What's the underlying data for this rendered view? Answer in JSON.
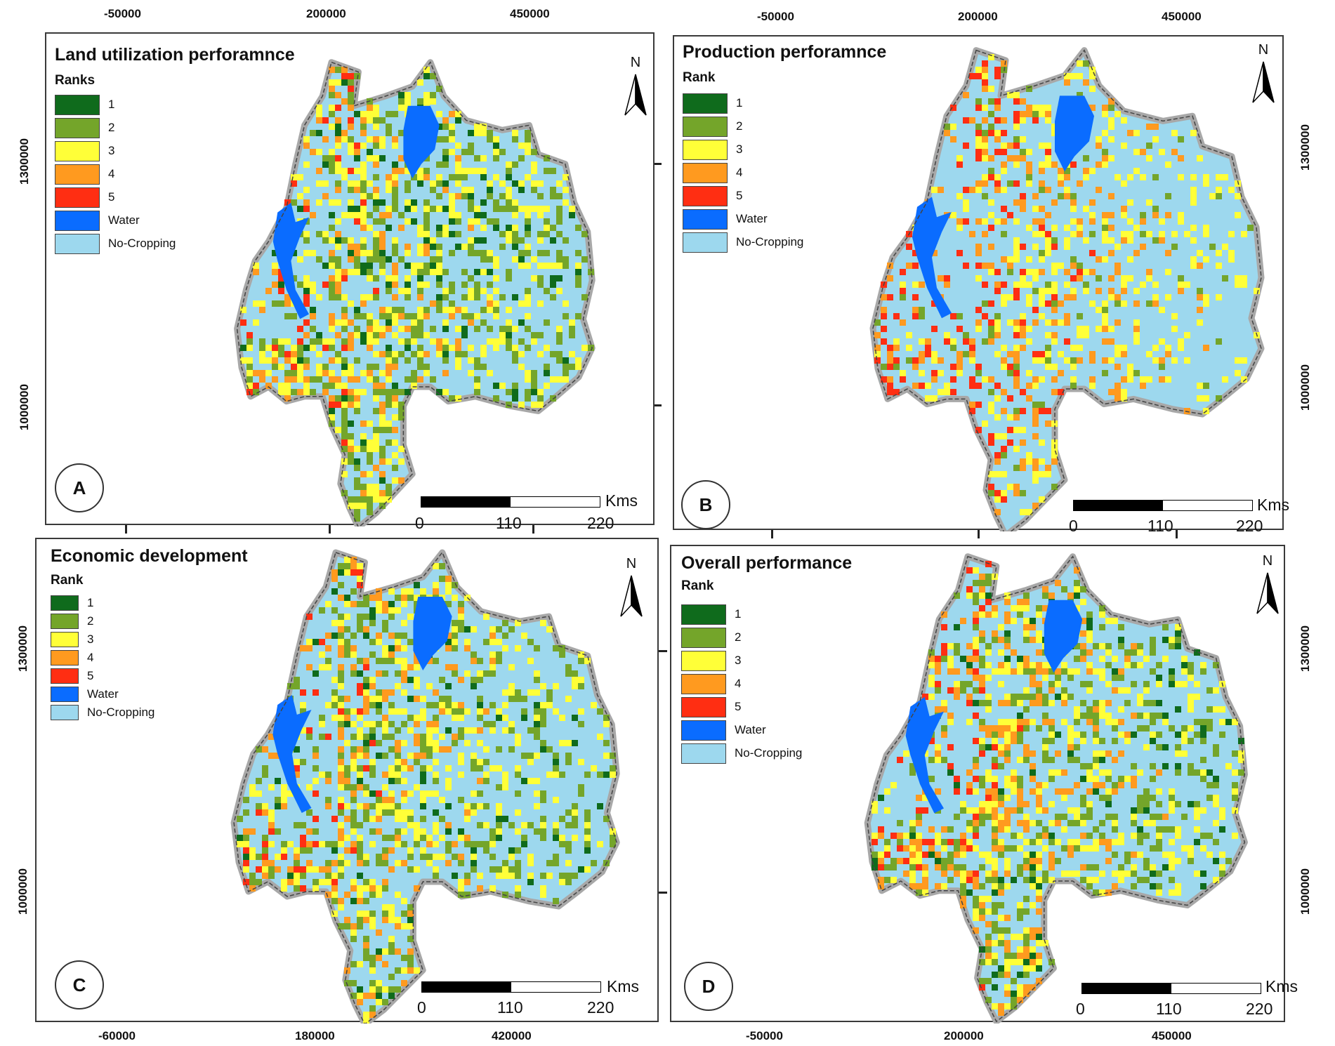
{
  "colors": {
    "rank1": "#0f6b1c",
    "rank2": "#74a52a",
    "rank3": "#ffff38",
    "rank4": "#ff9a1f",
    "rank5": "#ff2e12",
    "water": "#0a6cff",
    "nocrop": "#9dd8ee",
    "border": "#a8a8a8"
  },
  "panels": [
    {
      "letter": "A",
      "title": "Land utilization perforamnce",
      "legend_title": "Ranks",
      "legend": [
        {
          "label": "1",
          "color": "#0f6b1c"
        },
        {
          "label": "2",
          "color": "#74a52a"
        },
        {
          "label": "3",
          "color": "#ffff38"
        },
        {
          "label": "4",
          "color": "#ff9a1f"
        },
        {
          "label": "5",
          "color": "#ff2e12"
        },
        {
          "label": "Water",
          "color": "#0a6cff"
        },
        {
          "label": "No-Cropping",
          "color": "#9dd8ee"
        }
      ],
      "north": "N",
      "scale": {
        "unit": "Kms",
        "ticks": [
          "0",
          "110",
          "220"
        ]
      },
      "x_ticks": [
        "-50000",
        "200000",
        "450000"
      ],
      "y_ticks": [
        "1300000",
        "1000000"
      ]
    },
    {
      "letter": "B",
      "title": "Production perforamnce",
      "legend_title": "Rank",
      "legend": [
        {
          "label": "1",
          "color": "#0f6b1c"
        },
        {
          "label": "2",
          "color": "#74a52a"
        },
        {
          "label": "3",
          "color": "#ffff38"
        },
        {
          "label": "4",
          "color": "#ff9a1f"
        },
        {
          "label": "5",
          "color": "#ff2e12"
        },
        {
          "label": "Water",
          "color": "#0a6cff"
        },
        {
          "label": "No-Cropping",
          "color": "#9dd8ee"
        }
      ],
      "north": "N",
      "scale": {
        "unit": "Kms",
        "ticks": [
          "0",
          "110",
          "220"
        ]
      },
      "x_ticks": [
        "-50000",
        "200000",
        "450000"
      ],
      "y_ticks": [
        "1300000",
        "1000000"
      ]
    },
    {
      "letter": "C",
      "title": "Economic development",
      "legend_title": "Rank",
      "legend": [
        {
          "label": "1",
          "color": "#0f6b1c"
        },
        {
          "label": "2",
          "color": "#74a52a"
        },
        {
          "label": "3",
          "color": "#ffff38"
        },
        {
          "label": "4",
          "color": "#ff9a1f"
        },
        {
          "label": "5",
          "color": "#ff2e12"
        },
        {
          "label": "Water",
          "color": "#0a6cff"
        },
        {
          "label": "No-Cropping",
          "color": "#9dd8ee"
        }
      ],
      "north": "N",
      "scale": {
        "unit": "Kms",
        "ticks": [
          "0",
          "110",
          "220"
        ]
      },
      "x_ticks": [
        "-60000",
        "180000",
        "420000"
      ],
      "y_ticks": [
        "1300000",
        "1000000"
      ]
    },
    {
      "letter": "D",
      "title": "Overall performance",
      "legend_title": "Rank",
      "legend": [
        {
          "label": "1",
          "color": "#0f6b1c"
        },
        {
          "label": "2",
          "color": "#74a52a"
        },
        {
          "label": "3",
          "color": "#ffff38"
        },
        {
          "label": "4",
          "color": "#ff9a1f"
        },
        {
          "label": "5",
          "color": "#ff2e12"
        },
        {
          "label": "Water",
          "color": "#0a6cff"
        },
        {
          "label": "No-Cropping",
          "color": "#9dd8ee"
        }
      ],
      "north": "N",
      "scale": {
        "unit": "Kms",
        "ticks": [
          "0",
          "110",
          "220"
        ]
      },
      "x_ticks": [
        "-50000",
        "200000",
        "450000"
      ],
      "y_ticks": [
        "1300000",
        "1000000"
      ]
    }
  ]
}
